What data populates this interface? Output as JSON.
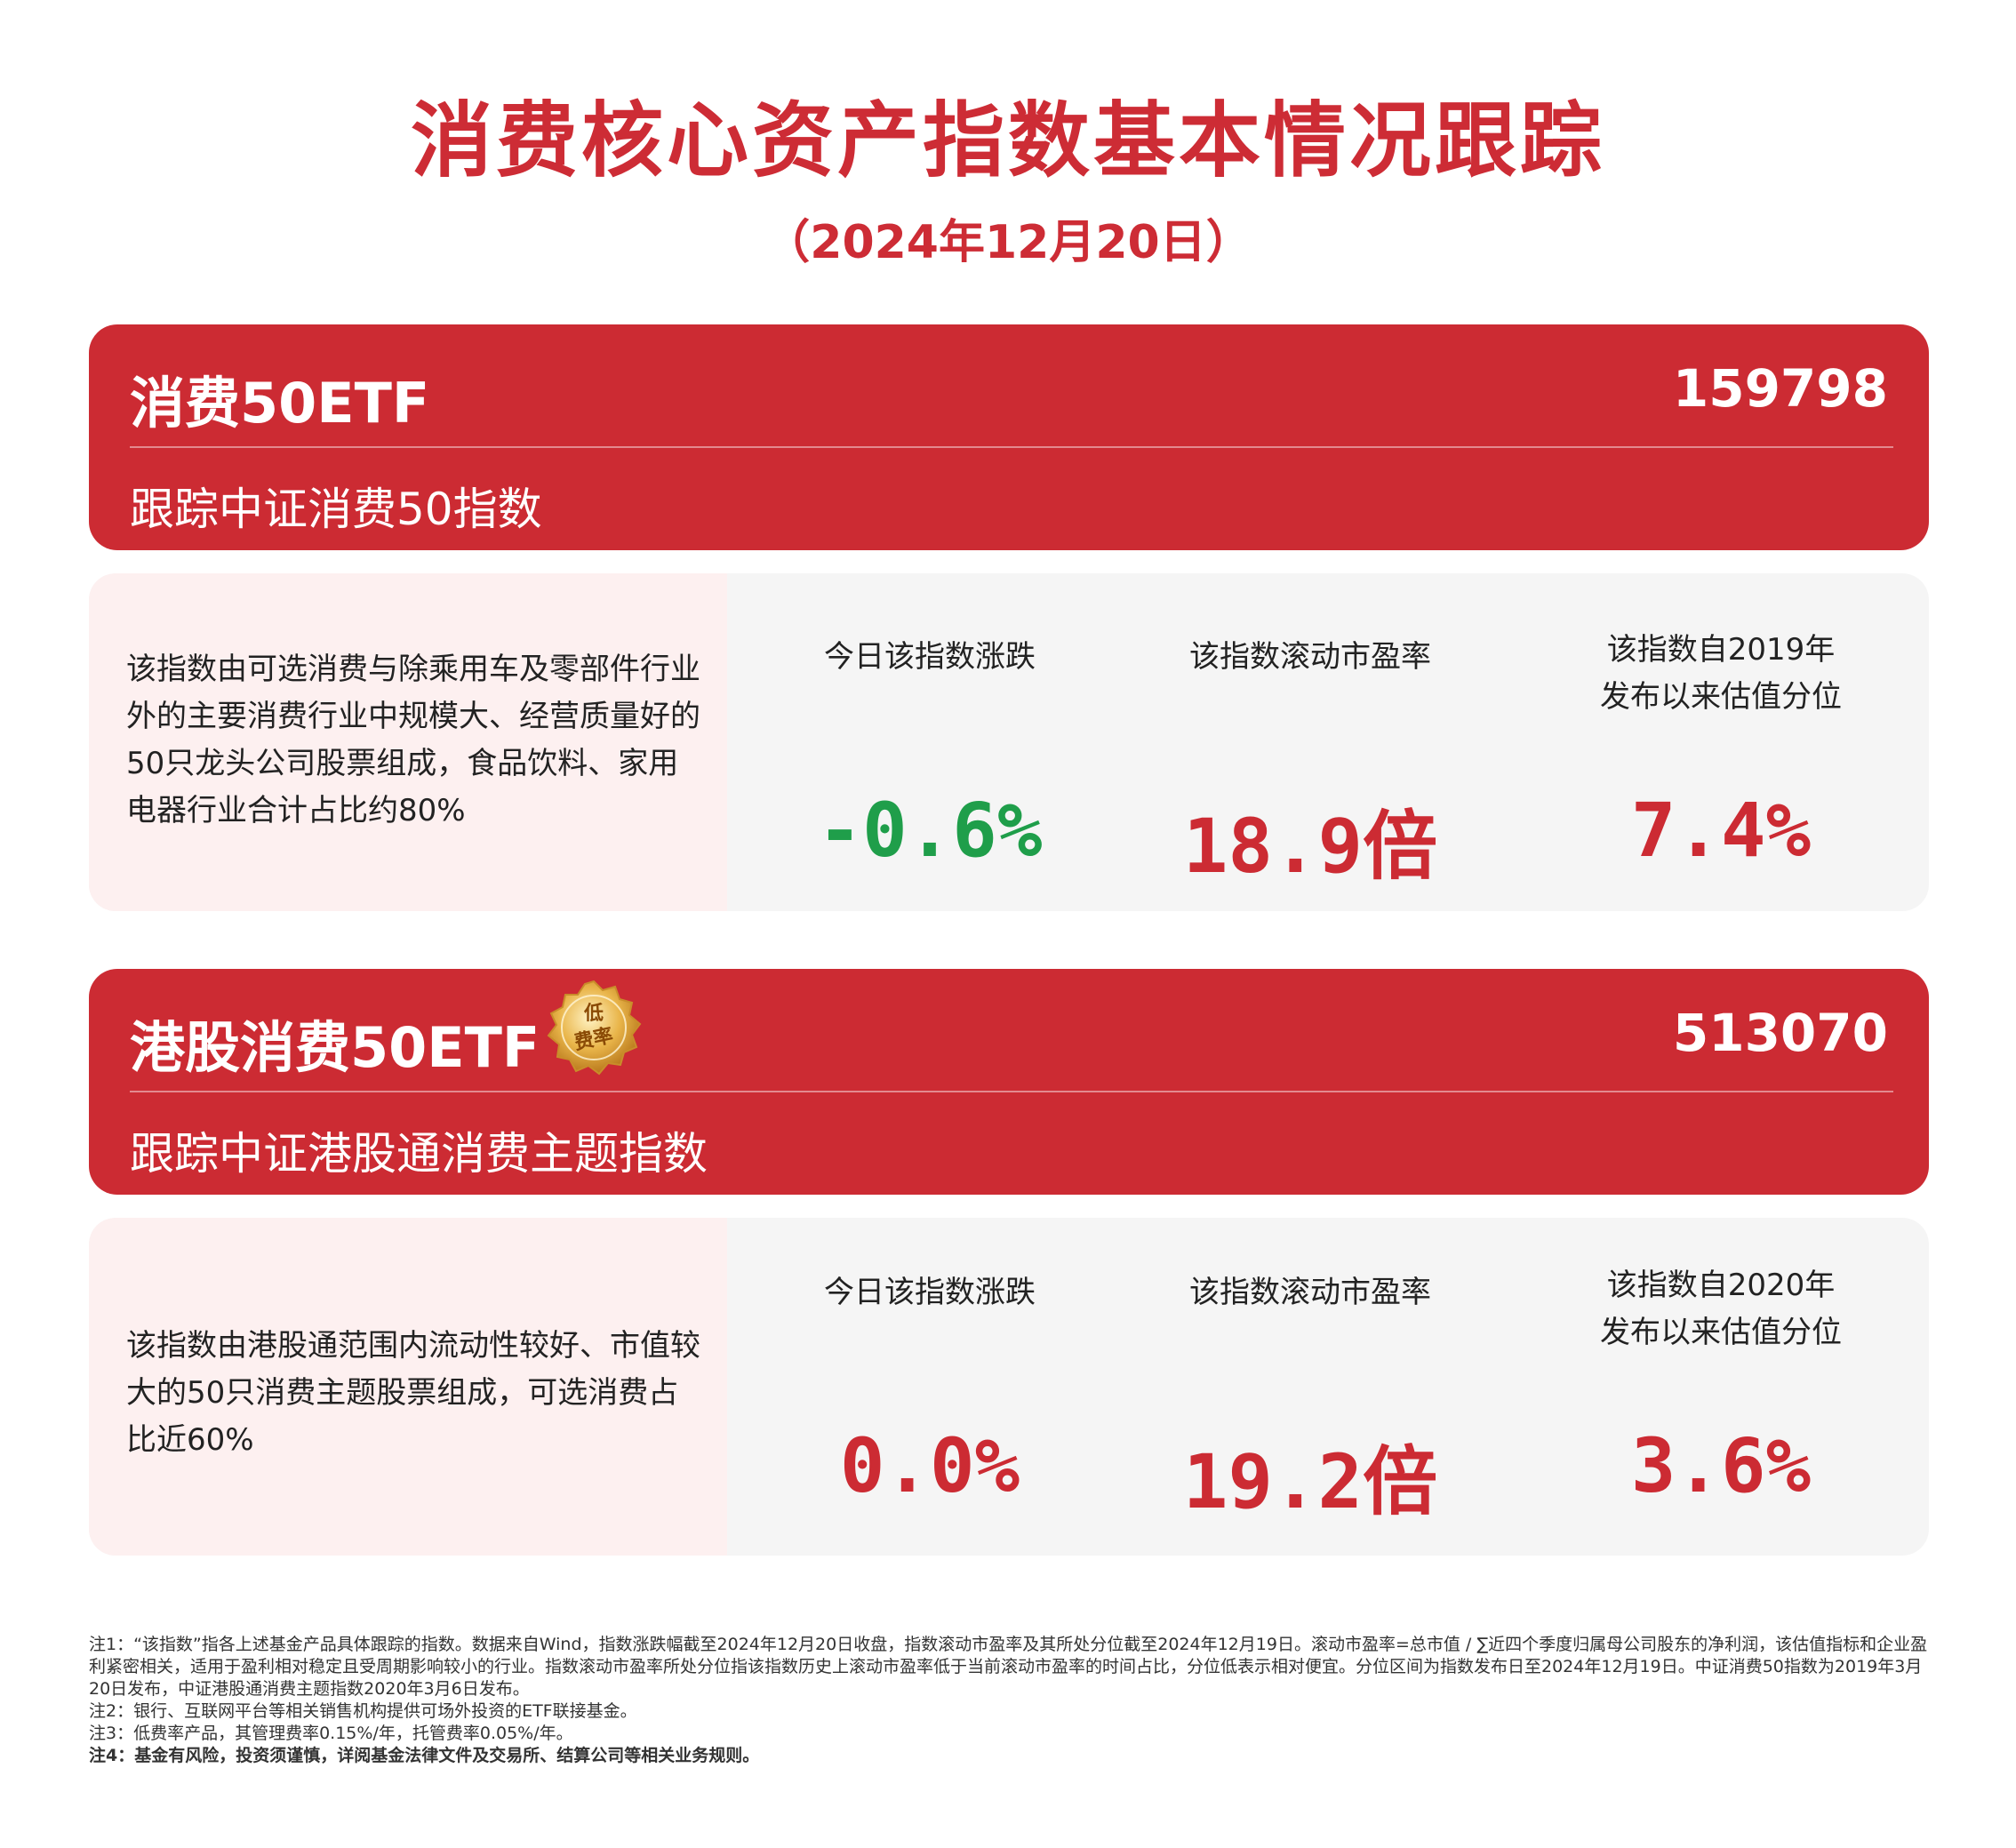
{
  "title": "消费核心资产指数基本情况跟踪",
  "subtitle": "（2024年12月20日）",
  "colors": {
    "accent": "#cc2b33",
    "negative": "#1f9e4a",
    "positive": "#cc2b33",
    "card_desc_bg": "#fdf0f0",
    "card_bg": "#f5f5f5"
  },
  "funds": [
    {
      "name": "消费50ETF",
      "code": "159798",
      "tracks": "跟踪中证消费50指数",
      "description": "该指数由可选消费与除乘用车及零部件行业外的主要消费行业中规模大、经营质量好的50只龙头公司股票组成，食品饮料、家用电器行业合计占比约80%",
      "metrics": [
        {
          "label": "今日该指数涨跌",
          "value": "-0.6%",
          "trend": "down"
        },
        {
          "label": "该指数滚动市盈率",
          "value": "18.9倍",
          "trend": "up"
        },
        {
          "label": "该指数自2019年\n发布以来估值分位",
          "value": "7.4%",
          "trend": "up"
        }
      ]
    },
    {
      "name": "港股消费50ETF",
      "code": "513070",
      "badge": "低费率",
      "badge_line1": "低",
      "badge_line2": "费率",
      "tracks": "跟踪中证港股通消费主题指数",
      "description": "该指数由港股通范围内流动性较好、市值较大的50只消费主题股票组成，可选消费占比近60%",
      "metrics": [
        {
          "label": "今日该指数涨跌",
          "value": "0.0%",
          "trend": "flat"
        },
        {
          "label": "该指数滚动市盈率",
          "value": "19.2倍",
          "trend": "up"
        },
        {
          "label": "该指数自2020年\n发布以来估值分位",
          "value": "3.6%",
          "trend": "up"
        }
      ]
    }
  ],
  "notes": {
    "n1": "注1：“该指数”指各上述基金产品具体跟踪的指数。数据来自Wind，指数涨跌幅截至2024年12月20日收盘，指数滚动市盈率及其所处分位截至2024年12月19日。滚动市盈率=总市值 / ∑近四个季度归属母公司股东的净利润，该估值指标和企业盈利紧密相关，适用于盈利相对稳定且受周期影响较小的行业。指数滚动市盈率所处分位指该指数历史上滚动市盈率低于当前滚动市盈率的时间占比，分位低表示相对便宜。分位区间为指数发布日至2024年12月19日。中证消费50指数为2019年3月20日发布，中证港股通消费主题指数2020年3月6日发布。",
    "n2": "注2：银行、互联网平台等相关销售机构提供可场外投资的ETF联接基金。",
    "n3": "注3：低费率产品，其管理费率0.15%/年，托管费率0.05%/年。",
    "n4": "注4：基金有风险，投资须谨慎，详阅基金法律文件及交易所、结算公司等相关业务规则。"
  }
}
